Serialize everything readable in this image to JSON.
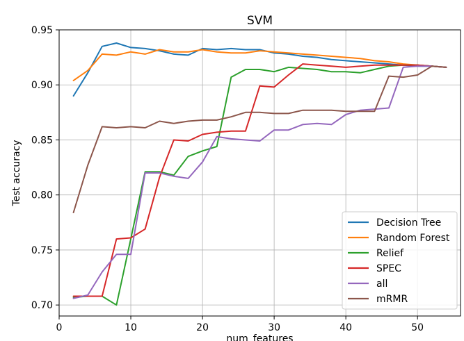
{
  "chart_data": {
    "type": "line",
    "title": "SVM",
    "xlabel": "num_features",
    "ylabel": "Test accuracy",
    "xlim": [
      0,
      56
    ],
    "ylim": [
      0.69,
      0.95
    ],
    "xticks": [
      0,
      10,
      20,
      30,
      40,
      50
    ],
    "xtick_labels": [
      "0",
      "10",
      "20",
      "30",
      "40",
      "50"
    ],
    "yticks": [
      0.7,
      0.75,
      0.8,
      0.85,
      0.9,
      0.95
    ],
    "ytick_labels": [
      "0.70",
      "0.75",
      "0.80",
      "0.85",
      "0.90",
      "0.95"
    ],
    "grid": true,
    "legend_position": "lower-right",
    "x": [
      2,
      4,
      6,
      8,
      10,
      12,
      14,
      16,
      18,
      20,
      22,
      24,
      26,
      28,
      30,
      32,
      34,
      36,
      38,
      40,
      42,
      44,
      46,
      48,
      50,
      52,
      54
    ],
    "series": [
      {
        "name": "Decision Tree",
        "color": "#1f77b4",
        "values": [
          0.89,
          0.911,
          0.935,
          0.938,
          0.934,
          0.933,
          0.931,
          0.928,
          0.927,
          0.933,
          0.932,
          0.933,
          0.932,
          0.932,
          0.929,
          0.928,
          0.926,
          0.925,
          0.923,
          0.922,
          0.921,
          0.92,
          0.919,
          0.918,
          0.917,
          0.917,
          0.916
        ]
      },
      {
        "name": "Random Forest",
        "color": "#ff7f0e",
        "values": [
          0.904,
          0.913,
          0.928,
          0.927,
          0.93,
          0.928,
          0.932,
          0.93,
          0.93,
          0.932,
          0.93,
          0.929,
          0.929,
          0.931,
          0.93,
          0.929,
          0.928,
          0.927,
          0.926,
          0.925,
          0.924,
          0.922,
          0.921,
          0.919,
          0.918,
          0.917,
          0.916
        ]
      },
      {
        "name": "Relief",
        "color": "#2ca02c",
        "values": [
          0.707,
          0.708,
          0.708,
          0.7,
          0.76,
          0.821,
          0.821,
          0.818,
          0.835,
          0.84,
          0.844,
          0.907,
          0.914,
          0.914,
          0.912,
          0.916,
          0.915,
          0.914,
          0.912,
          0.912,
          0.911,
          0.914,
          0.917,
          0.918,
          0.918,
          0.917,
          0.916
        ]
      },
      {
        "name": "SPEC",
        "color": "#d62728",
        "values": [
          0.708,
          0.708,
          0.708,
          0.76,
          0.761,
          0.769,
          0.816,
          0.85,
          0.849,
          0.855,
          0.857,
          0.858,
          0.858,
          0.899,
          0.898,
          0.909,
          0.919,
          0.918,
          0.917,
          0.916,
          0.917,
          0.918,
          0.918,
          0.918,
          0.918,
          0.917,
          0.916
        ]
      },
      {
        "name": "all",
        "color": "#9467bd",
        "values": [
          0.706,
          0.709,
          0.73,
          0.746,
          0.746,
          0.82,
          0.82,
          0.817,
          0.815,
          0.83,
          0.853,
          0.851,
          0.85,
          0.849,
          0.859,
          0.859,
          0.864,
          0.865,
          0.864,
          0.873,
          0.877,
          0.878,
          0.879,
          0.916,
          0.917,
          0.917,
          0.916
        ]
      },
      {
        "name": "mRMR",
        "color": "#8c564b",
        "values": [
          0.784,
          0.827,
          0.862,
          0.861,
          0.862,
          0.861,
          0.867,
          0.865,
          0.867,
          0.868,
          0.868,
          0.871,
          0.875,
          0.875,
          0.874,
          0.874,
          0.877,
          0.877,
          0.877,
          0.876,
          0.876,
          0.876,
          0.908,
          0.907,
          0.909,
          0.917,
          0.916
        ]
      }
    ]
  }
}
